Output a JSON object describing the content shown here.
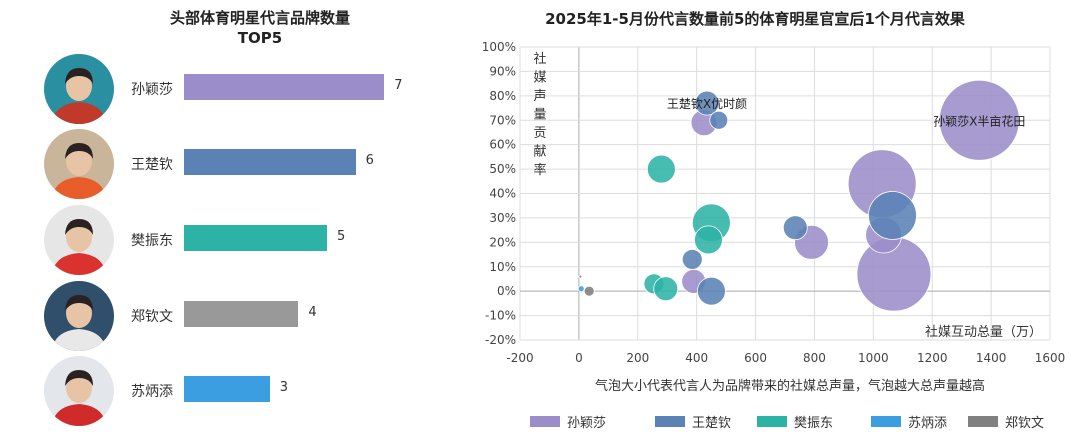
{
  "chart_data": [
    {
      "type": "bar",
      "orientation": "horizontal",
      "title_line1": "头部体育明星代言品牌数量",
      "title_line2": "TOP5",
      "categories": [
        "孙颖莎",
        "王楚钦",
        "樊振东",
        "郑钦文",
        "苏炳添"
      ],
      "values": [
        7,
        6,
        5,
        4,
        3
      ],
      "colors": [
        "#9b8dc9",
        "#5b82b5",
        "#2db3a6",
        "#999999",
        "#3a9ee0"
      ]
    },
    {
      "type": "scatter",
      "subtype": "bubble",
      "title": "2025年1-5月份代言数量前5的体育明星官宣后1个月代言效果",
      "xlabel": "社媒互动总量（万）",
      "ylabel": "社媒声量贡献率",
      "xlim": [
        -200,
        1600
      ],
      "ylim": [
        -20,
        100
      ],
      "x_ticks": [
        "-200",
        "0",
        "200",
        "400",
        "600",
        "800",
        "1000",
        "1200",
        "1400",
        "1600"
      ],
      "y_ticks": [
        "-20%",
        "-10%",
        "0%",
        "10%",
        "20%",
        "30%",
        "40%",
        "50%",
        "60%",
        "70%",
        "80%",
        "90%",
        "100%"
      ],
      "note": "气泡大小代表代言人为品牌带来的社媒总声量，气泡越大总声量越高",
      "annotations": [
        {
          "text": "王楚钦X优时颜",
          "x": 435,
          "y": 77
        },
        {
          "text": "孙颖莎X半亩花田",
          "x": 1360,
          "y": 70
        }
      ],
      "legend_position": "bottom",
      "series": [
        {
          "name": "孙颖莎",
          "color": "#9b8dc9",
          "points": [
            [
              1360,
              70,
              40
            ],
            [
              1030,
              44,
              34
            ],
            [
              1070,
              7,
              37
            ],
            [
              1035,
              23,
              18
            ],
            [
              790,
              20,
              17
            ],
            [
              425,
              69,
              13
            ],
            [
              390,
              4,
              12
            ]
          ]
        },
        {
          "name": "王楚钦",
          "color": "#5b82b5",
          "points": [
            [
              435,
              77,
              12
            ],
            [
              475,
              70,
              9
            ],
            [
              1065,
              31,
              24
            ],
            [
              735,
              26,
              12
            ],
            [
              385,
              13,
              10
            ],
            [
              450,
              0,
              14
            ]
          ]
        },
        {
          "name": "樊振东",
          "color": "#2db3a6",
          "points": [
            [
              280,
              50,
              14
            ],
            [
              450,
              28,
              19
            ],
            [
              440,
              21,
              14
            ],
            [
              255,
              3,
              10
            ],
            [
              295,
              1,
              12
            ]
          ]
        },
        {
          "name": "苏炳添",
          "color": "#3a9ee0",
          "points": [
            [
              8,
              1,
              3
            ]
          ]
        },
        {
          "name": "郑钦文",
          "color": "#808080",
          "points": [
            [
              35,
              0,
              5
            ],
            [
              5,
              6,
              1.5
            ]
          ]
        }
      ]
    }
  ]
}
